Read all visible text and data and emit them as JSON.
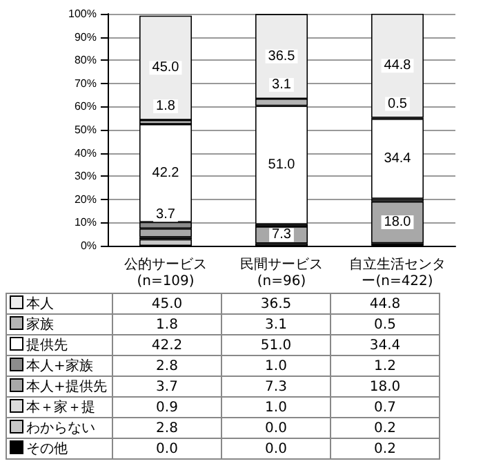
{
  "chart_data": {
    "type": "bar",
    "stacked": true,
    "categories": [
      "公的サービス(n=109)",
      "民間サービス(n=96)",
      "自立生活センター(n=422)"
    ],
    "series": [
      {
        "name": "その他",
        "color": "#000000",
        "values": [
          0.0,
          0.0,
          0.2
        ],
        "value_labels": [
          "0.0",
          "0.0",
          "0.2"
        ]
      },
      {
        "name": "わからない",
        "color": "#c8c8c8",
        "values": [
          2.8,
          0.0,
          0.2
        ],
        "value_labels": [
          "2.8",
          "0.0",
          "0.2"
        ]
      },
      {
        "name": "本＋家＋提",
        "color": "#dcdcdc",
        "values": [
          0.9,
          1.0,
          0.7
        ],
        "value_labels": [
          "0.9",
          "1.0",
          "0.7"
        ]
      },
      {
        "name": "本人+提供先",
        "color": "#a8a8a8",
        "values": [
          3.7,
          7.3,
          18.0
        ],
        "value_labels": [
          "3.7",
          "7.3",
          "18.0"
        ]
      },
      {
        "name": "本人+家族",
        "color": "#8c8c8c",
        "values": [
          2.8,
          1.0,
          1.2
        ],
        "value_labels": [
          "2.8",
          "1.0",
          "1.2"
        ]
      },
      {
        "name": "提供先",
        "color": "#ffffff",
        "values": [
          42.2,
          51.0,
          34.4
        ],
        "value_labels": [
          "42.2",
          "51.0",
          "34.4"
        ]
      },
      {
        "name": "家族",
        "color": "#b4b4b4",
        "values": [
          1.8,
          3.1,
          0.5
        ],
        "value_labels": [
          "1.8",
          "3.1",
          "0.5"
        ]
      },
      {
        "name": "本人",
        "color": "#ececec",
        "values": [
          45.0,
          36.5,
          44.8
        ],
        "value_labels": [
          "45.0",
          "36.5",
          "44.8"
        ]
      }
    ],
    "ylim": [
      0,
      100
    ],
    "yticks": [
      {
        "value": 0,
        "label": "0%"
      },
      {
        "value": 10,
        "label": "10%"
      },
      {
        "value": 20,
        "label": "20%"
      },
      {
        "value": 30,
        "label": "30%"
      },
      {
        "value": 40,
        "label": "40%"
      },
      {
        "value": 50,
        "label": "50%"
      },
      {
        "value": 60,
        "label": "60%"
      },
      {
        "value": 70,
        "label": "70%"
      },
      {
        "value": 80,
        "label": "80%"
      },
      {
        "value": 90,
        "label": "90%"
      },
      {
        "value": 100,
        "label": "100%"
      }
    ],
    "grid": "y",
    "legend": "bottom",
    "data_labels": true
  }
}
